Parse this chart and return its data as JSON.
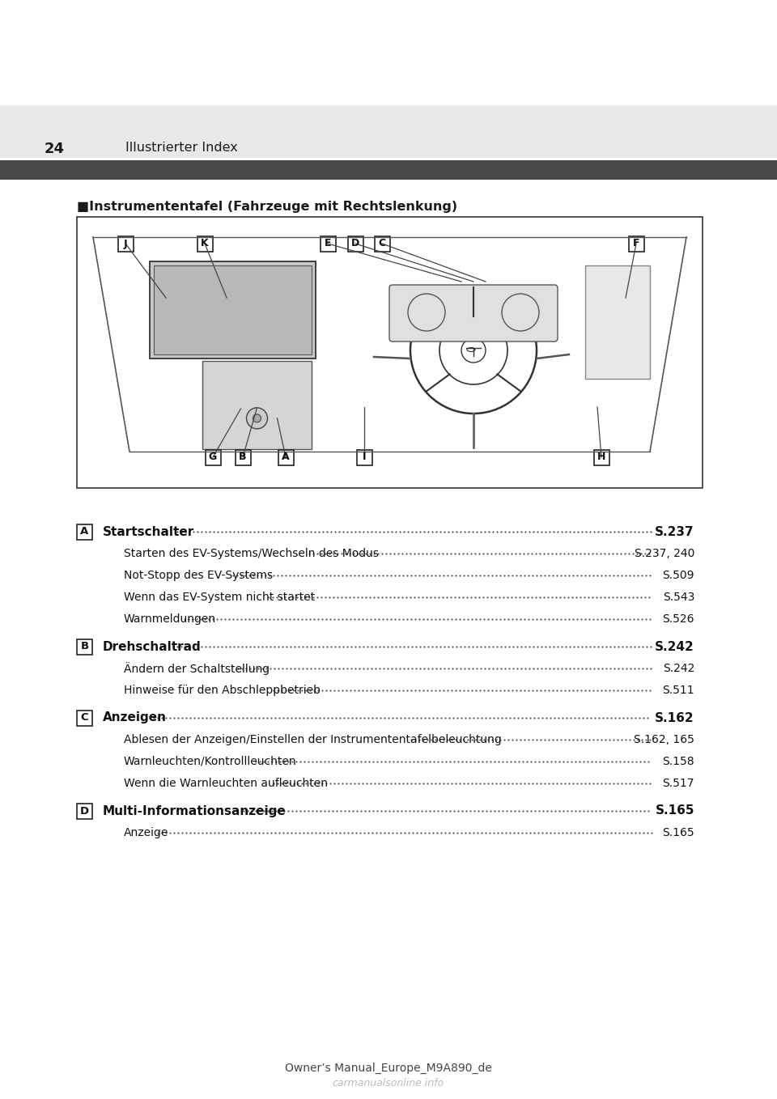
{
  "page_number": "24",
  "header_section": "Illustrierter Index",
  "dark_bar_color": "#4a4a4a",
  "header_bg_color": "#e8eaea",
  "section_title": "■Instrumententafel (Fahrzeuge mit Rechtslenkung)",
  "footer_text": "Owner’s Manual_Europe_M9A890_de",
  "watermark_text": "carmanualsonline.info",
  "entries": [
    {
      "label": "A",
      "title": "Startschalter",
      "page_ref": "S.237",
      "bold": true,
      "sub_entries": [
        {
          "text": "Starten des EV-Systems/Wechseln des Modus",
          "page_ref": "S.237, 240"
        },
        {
          "text": "Not-Stopp des EV-Systems",
          "page_ref": "S.509"
        },
        {
          "text": "Wenn das EV-System nicht startet",
          "page_ref": "S.543"
        },
        {
          "text": "Warnmeldungen",
          "page_ref": "S.526"
        }
      ]
    },
    {
      "label": "B",
      "title": "Drehschaltrad",
      "page_ref": "S.242",
      "bold": true,
      "sub_entries": [
        {
          "text": "Ändern der Schaltstellung",
          "page_ref": "S.242"
        },
        {
          "text": "Hinweise für den Abschleppbetrieb",
          "page_ref": "S.511"
        }
      ]
    },
    {
      "label": "C",
      "title": "Anzeigen",
      "page_ref": "S.162",
      "bold": true,
      "sub_entries": [
        {
          "text": "Ablesen der Anzeigen/Einstellen der Instrumententafelbeleuchtung",
          "page_ref": "S.162, 165"
        },
        {
          "text": "Warnleuchten/Kontrollleuchten",
          "page_ref": "S.158"
        },
        {
          "text": "Wenn die Warnleuchten aufleuchten",
          "page_ref": "S.517"
        }
      ]
    },
    {
      "label": "D",
      "title": "Multi-Informationsanzeige",
      "page_ref": "S.165",
      "bold": true,
      "sub_entries": [
        {
          "text": "Anzeige",
          "page_ref": "S.165"
        }
      ]
    }
  ],
  "diagram_labels": [
    "J",
    "K",
    "E",
    "D",
    "C",
    "F",
    "G",
    "B",
    "A",
    "I",
    "H"
  ],
  "bg_color": "#ffffff"
}
